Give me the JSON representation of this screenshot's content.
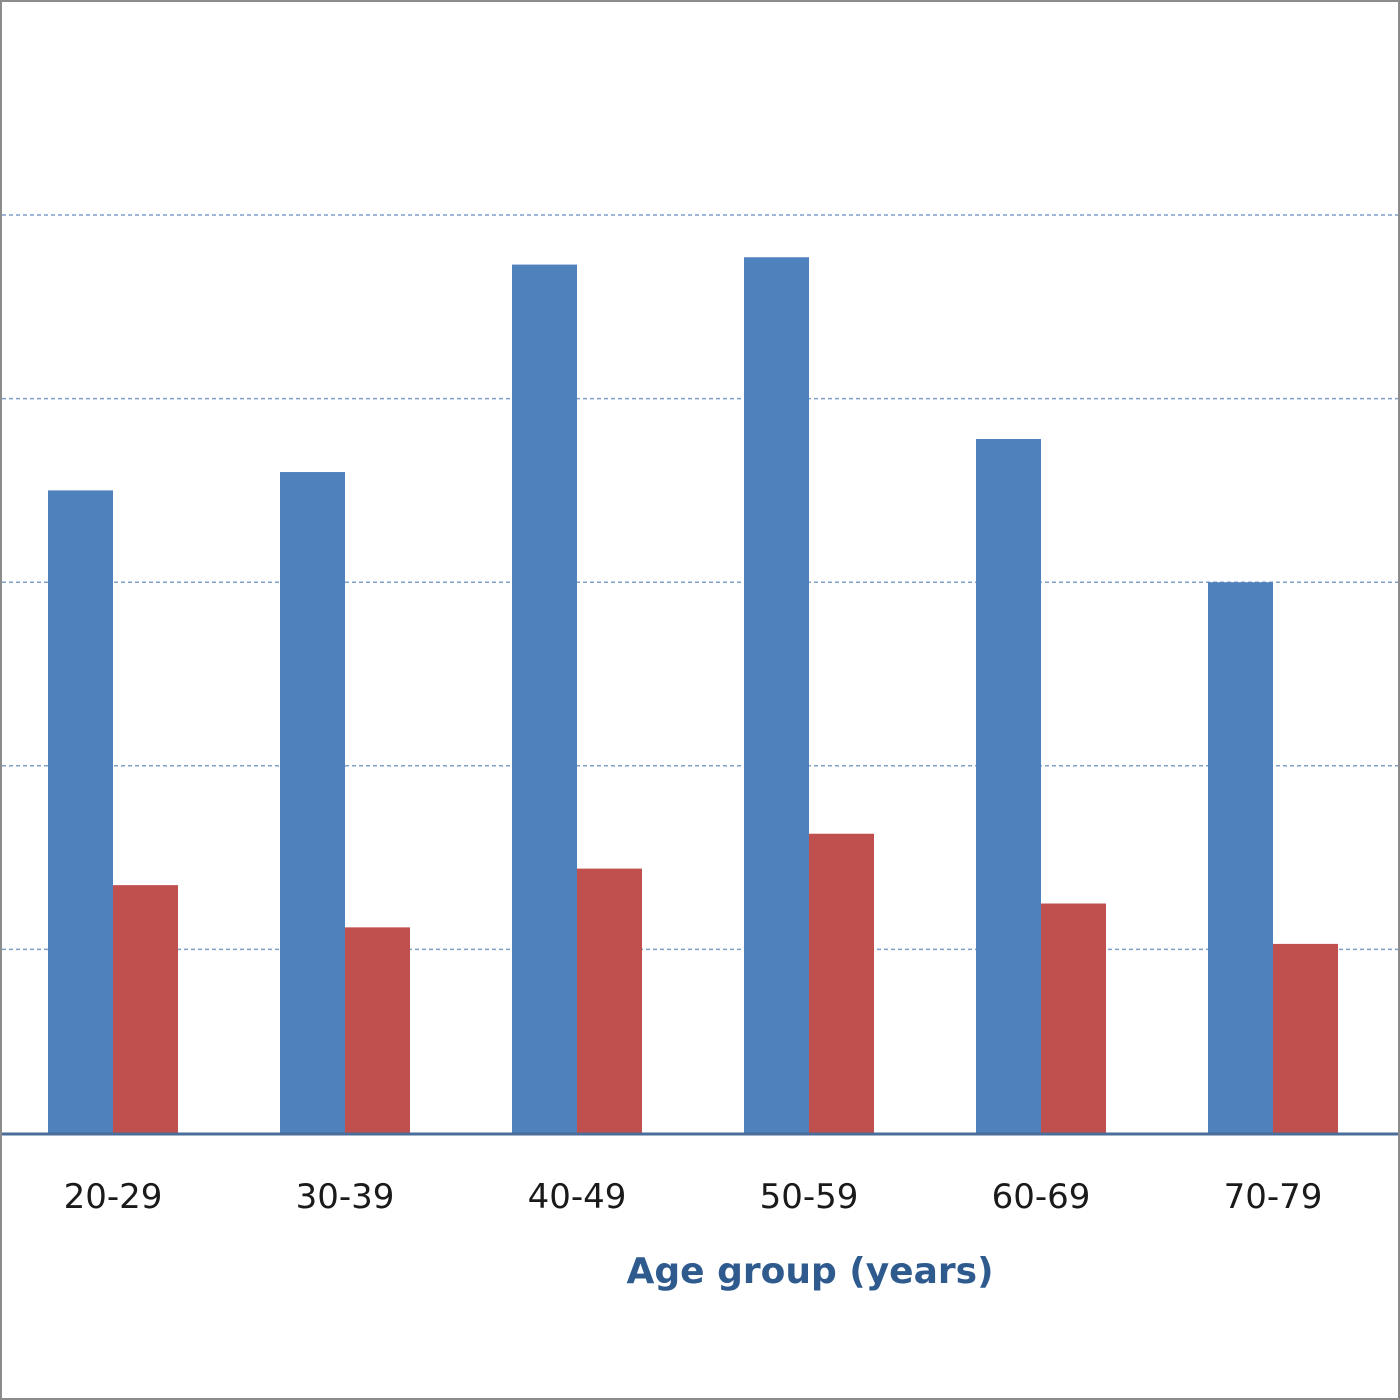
{
  "chart_data": {
    "type": "bar",
    "categories": [
      "20-29",
      "30-39",
      "40-49",
      "50-59",
      "60-69",
      "70-79"
    ],
    "series": [
      {
        "values": [
          3.5,
          3.6,
          4.73,
          4.77,
          3.78,
          3.0
        ],
        "color": "#4f81bd"
      },
      {
        "values": [
          1.35,
          1.12,
          1.44,
          1.63,
          1.25,
          1.03
        ],
        "color": "#c0504d"
      }
    ],
    "xlabel": "Age group (years)",
    "ylabel": "",
    "ylim": [
      0,
      5
    ],
    "grid": true,
    "grid_style": "dashed",
    "grid_color": "#7f9fc8",
    "axis_color": "#4a6d99",
    "xlabel_color": "#2e5a8e"
  }
}
